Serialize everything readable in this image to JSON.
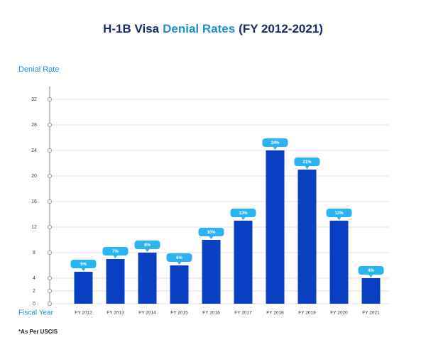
{
  "chart_data": {
    "type": "bar",
    "title_parts": [
      "H-1B Visa",
      "Denial Rates",
      "(FY 2012-2021)"
    ],
    "y_label": "Denial Rate",
    "x_label": "Fiscal Year",
    "footnote": "*As Per USCIS",
    "categories": [
      "FY 2012",
      "FY 2013",
      "FY 2014",
      "FY 2015",
      "FY 2016",
      "FY 2017",
      "FY 2018",
      "FY 2019",
      "FY 2020",
      "FY 2021"
    ],
    "values": [
      5,
      7,
      8,
      6,
      10,
      13,
      24,
      21,
      13,
      4
    ],
    "value_labels": [
      "5%",
      "7%",
      "8%",
      "6%",
      "10%",
      "13%",
      "24%",
      "21%",
      "13%",
      "4%"
    ],
    "color": "#0b3fc3",
    "label_color": "#2bb3f3",
    "ylim": [
      0,
      32
    ],
    "yticks": [
      0,
      2,
      4,
      8,
      12,
      16,
      20,
      24,
      28,
      32
    ],
    "grid": true
  }
}
